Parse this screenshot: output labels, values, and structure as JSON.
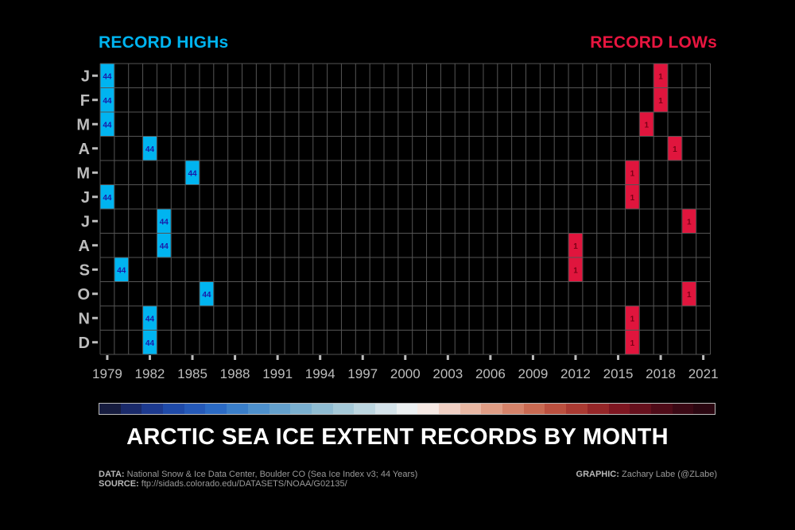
{
  "legend": {
    "high_label": "RECORD HIGHs",
    "low_label": "RECORD LOWs"
  },
  "title": "ARCTIC SEA ICE EXTENT RECORDS BY MONTH",
  "footer": {
    "data_label": "DATA:",
    "data_text": "National Snow & Ice Data Center, Boulder CO (Sea Ice Index v3; 44 Years)",
    "source_label": "SOURCE:",
    "source_text": "ftp://sidads.colorado.edu/DATASETS/NOAA/G02135/",
    "graphic_label": "GRAPHIC:",
    "graphic_text": "Zachary Labe (@ZLabe)"
  },
  "colors": {
    "high": "#00b4f0",
    "high_text": "#1a1aa8",
    "low": "#e0153d",
    "low_text": "#7a0015",
    "grid": "#555555",
    "axis_text": "#bdbdbd"
  },
  "chart_data": {
    "type": "heatmap",
    "title": "ARCTIC SEA ICE EXTENT RECORDS BY MONTH",
    "x_range": [
      1979,
      2021
    ],
    "x_ticks": [
      1979,
      1982,
      1985,
      1988,
      1991,
      1994,
      1997,
      2000,
      2003,
      2006,
      2009,
      2012,
      2015,
      2018,
      2021
    ],
    "months": [
      "J",
      "F",
      "M",
      "A",
      "M",
      "J",
      "J",
      "A",
      "S",
      "O",
      "N",
      "D"
    ],
    "record_highs": [
      {
        "month": 0,
        "year": 1979,
        "rank": 44
      },
      {
        "month": 1,
        "year": 1979,
        "rank": 44
      },
      {
        "month": 2,
        "year": 1979,
        "rank": 44
      },
      {
        "month": 3,
        "year": 1982,
        "rank": 44
      },
      {
        "month": 4,
        "year": 1985,
        "rank": 44
      },
      {
        "month": 5,
        "year": 1979,
        "rank": 44
      },
      {
        "month": 6,
        "year": 1983,
        "rank": 44
      },
      {
        "month": 7,
        "year": 1983,
        "rank": 44
      },
      {
        "month": 8,
        "year": 1980,
        "rank": 44
      },
      {
        "month": 9,
        "year": 1986,
        "rank": 44
      },
      {
        "month": 10,
        "year": 1982,
        "rank": 44
      },
      {
        "month": 11,
        "year": 1982,
        "rank": 44
      }
    ],
    "record_lows": [
      {
        "month": 0,
        "year": 2018,
        "rank": 1
      },
      {
        "month": 1,
        "year": 2018,
        "rank": 1
      },
      {
        "month": 2,
        "year": 2017,
        "rank": 1
      },
      {
        "month": 3,
        "year": 2019,
        "rank": 1
      },
      {
        "month": 4,
        "year": 2016,
        "rank": 1
      },
      {
        "month": 5,
        "year": 2016,
        "rank": 1
      },
      {
        "month": 6,
        "year": 2020,
        "rank": 1
      },
      {
        "month": 7,
        "year": 2012,
        "rank": 1
      },
      {
        "month": 8,
        "year": 2012,
        "rank": 1
      },
      {
        "month": 9,
        "year": 2020,
        "rank": 1
      },
      {
        "month": 10,
        "year": 2016,
        "rank": 1
      },
      {
        "month": 11,
        "year": 2016,
        "rank": 1
      }
    ],
    "colorbar": {
      "colors": [
        "#161c3f",
        "#1a2a6a",
        "#1d3a8f",
        "#1f4aa8",
        "#2559b8",
        "#2b6ac4",
        "#3a7ec9",
        "#4e90cc",
        "#64a0cc",
        "#7aafcf",
        "#8fbcd2",
        "#a5c9d8",
        "#bcd6e0",
        "#d4e3ea",
        "#ecf0f2",
        "#f6e9e4",
        "#f0d0c4",
        "#e8b7a3",
        "#df9d85",
        "#d5836a",
        "#c96a52",
        "#bb503f",
        "#aa3a32",
        "#952628",
        "#7e1621",
        "#66101d",
        "#4f0b18",
        "#3a0814",
        "#2a0610"
      ]
    }
  }
}
